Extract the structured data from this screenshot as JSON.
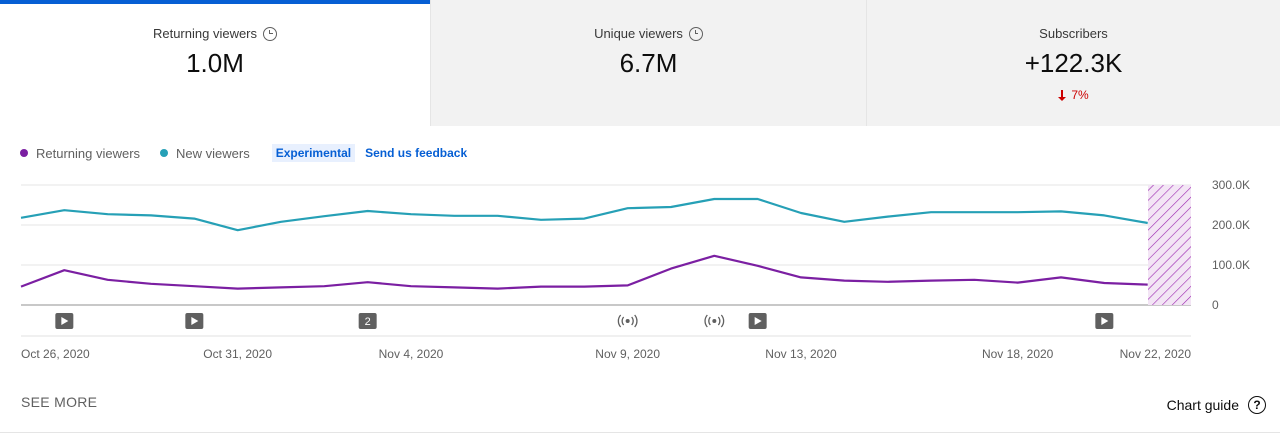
{
  "cards": [
    {
      "title": "Returning viewers",
      "value": "1.0M",
      "has_clock": true,
      "selected": true
    },
    {
      "title": "Unique viewers",
      "value": "6.7M",
      "has_clock": true
    },
    {
      "title": "Subscribers",
      "value": "+122.3K",
      "delta": "7%",
      "delta_icon": "arrow-down-icon",
      "delta_color": "#cc0000"
    }
  ],
  "legend": {
    "series": [
      {
        "name": "Returning viewers",
        "color": "#7b1fa2"
      },
      {
        "name": "New viewers",
        "color": "#26a0b6"
      }
    ],
    "experimental_label": "Experimental",
    "feedback_label": "Send us feedback"
  },
  "chart_data": {
    "type": "line",
    "x": [
      "Oct 26, 2020",
      "Oct 27, 2020",
      "Oct 28, 2020",
      "Oct 29, 2020",
      "Oct 30, 2020",
      "Oct 31, 2020",
      "Nov 1, 2020",
      "Nov 2, 2020",
      "Nov 3, 2020",
      "Nov 4, 2020",
      "Nov 5, 2020",
      "Nov 6, 2020",
      "Nov 7, 2020",
      "Nov 8, 2020",
      "Nov 9, 2020",
      "Nov 10, 2020",
      "Nov 11, 2020",
      "Nov 12, 2020",
      "Nov 13, 2020",
      "Nov 14, 2020",
      "Nov 15, 2020",
      "Nov 16, 2020",
      "Nov 17, 2020",
      "Nov 18, 2020",
      "Nov 19, 2020",
      "Nov 20, 2020",
      "Nov 21, 2020",
      "Nov 22, 2020"
    ],
    "series": [
      {
        "name": "Returning viewers",
        "color": "#7b1fa2",
        "values": [
          46000,
          87000,
          63000,
          53000,
          47000,
          41000,
          44000,
          47000,
          57000,
          47000,
          44000,
          41000,
          46000,
          46000,
          49000,
          91000,
          123000,
          98000,
          69000,
          61000,
          58000,
          61000,
          63000,
          56000,
          69000,
          55000,
          51000,
          null
        ]
      },
      {
        "name": "New viewers",
        "color": "#26a0b6",
        "values": [
          218000,
          237000,
          227000,
          224000,
          216000,
          187000,
          208000,
          222000,
          235000,
          227000,
          223000,
          223000,
          213000,
          216000,
          242000,
          245000,
          265000,
          265000,
          230000,
          208000,
          221000,
          232000,
          232000,
          232000,
          234000,
          224000,
          205000,
          null
        ]
      }
    ],
    "tick_labels": [
      "Oct 26, 2020",
      "Oct 31, 2020",
      "Nov 4, 2020",
      "Nov 9, 2020",
      "Nov 13, 2020",
      "Nov 18, 2020",
      "Nov 22, 2020"
    ],
    "tick_index": [
      0,
      5,
      9,
      14,
      18,
      23,
      27
    ],
    "y_ticks": [
      "300.0K",
      "200.0K",
      "100.0K",
      "0"
    ],
    "y_tick_values": [
      300000,
      200000,
      100000,
      0
    ],
    "ylim": [
      0,
      300000
    ],
    "grid": true,
    "partial_period": "Nov 22, 2020",
    "markers": [
      {
        "x": "Oct 27, 2020",
        "icon": "video-upload-icon",
        "label": ""
      },
      {
        "x": "Oct 30, 2020",
        "icon": "video-upload-icon",
        "label": ""
      },
      {
        "x": "Nov 3, 2020",
        "icon": "multiple-uploads-icon",
        "label": "2"
      },
      {
        "x": "Nov 9, 2020",
        "icon": "live-stream-icon",
        "label": ""
      },
      {
        "x": "Nov 11, 2020",
        "icon": "live-stream-icon",
        "label": ""
      },
      {
        "x": "Nov 12, 2020",
        "icon": "video-upload-icon",
        "label": ""
      },
      {
        "x": "Nov 20, 2020",
        "icon": "video-upload-icon",
        "label": ""
      }
    ]
  },
  "footer": {
    "see_more": "SEE MORE",
    "chart_guide": "Chart guide",
    "help_icon": "help-circle-icon"
  }
}
